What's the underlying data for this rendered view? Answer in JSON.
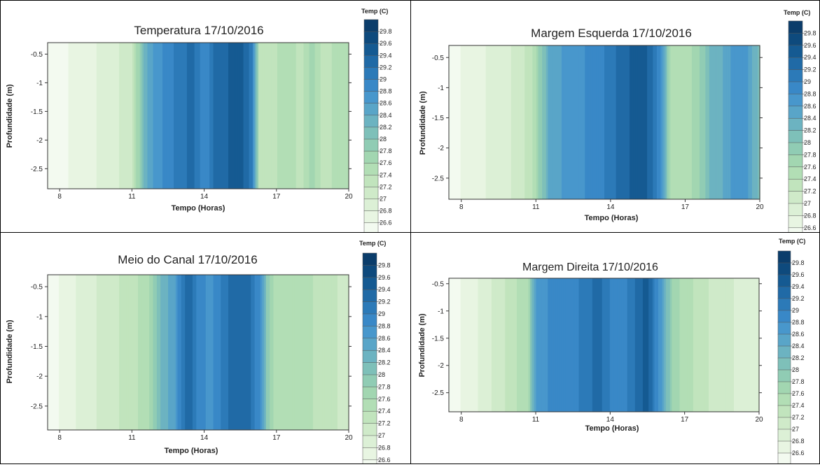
{
  "palette": [
    "#f3faf0",
    "#e8f5e2",
    "#dcf0d6",
    "#cfeac9",
    "#c1e4bd",
    "#b2deb5",
    "#a2d6b1",
    "#90ccb4",
    "#7ec0b9",
    "#6cb3c1",
    "#59a5c8",
    "#4897cc",
    "#3988c7",
    "#2c7ab8",
    "#206aa6",
    "#155a92",
    "#0e4a7d",
    "#0b3d6b"
  ],
  "legend": {
    "title": "Temp (C)",
    "levels": [
      "29.8",
      "29.6",
      "29.4",
      "29.2",
      "29",
      "28.8",
      "28.6",
      "28.4",
      "28.2",
      "28",
      "27.8",
      "27.6",
      "27.4",
      "27.2",
      "27",
      "26.8",
      "26.6"
    ]
  },
  "chart_data": [
    {
      "type": "heatmap",
      "title": "Temperatura 17/10/2016",
      "xlabel": "Tempo (Horas)",
      "ylabel": "Profundidade (m)",
      "xlim": [
        7.5,
        20
      ],
      "ylim": [
        -2.85,
        -0.3
      ],
      "xticks": [
        "8",
        "11",
        "14",
        "17",
        "20"
      ],
      "yticks": [
        "-0.5",
        "-1",
        "-1.5",
        "-2",
        "-2.5"
      ],
      "x": [
        7.5,
        8,
        9,
        10,
        11,
        11.5,
        12,
        12.5,
        13,
        13.5,
        14,
        14.5,
        15,
        15.5,
        16,
        16.3,
        17,
        17.5,
        18,
        18.5,
        19,
        19.5,
        20
      ],
      "profile": [
        26.7,
        26.75,
        26.9,
        27.1,
        27.3,
        28.5,
        28.9,
        29.1,
        29.3,
        29.5,
        29.0,
        29.5,
        29.6,
        29.7,
        29.3,
        27.5,
        27.6,
        27.8,
        27.5,
        27.9,
        27.4,
        27.7,
        27.6
      ]
    },
    {
      "type": "heatmap",
      "title": "Margem Esquerda 17/10/2016",
      "xlabel": "Tempo (Horas)",
      "ylabel": "Profundidade (m)",
      "xlim": [
        7.5,
        20
      ],
      "ylim": [
        -2.85,
        -0.3
      ],
      "xticks": [
        "8",
        "11",
        "14",
        "17",
        "20"
      ],
      "yticks": [
        "-0.5",
        "-1",
        "-1.5",
        "-2",
        "-2.5"
      ],
      "x": [
        7.5,
        8,
        9,
        10,
        10.8,
        11.5,
        12,
        12.5,
        13,
        13.5,
        14,
        14.5,
        15,
        15.5,
        16,
        16.5,
        17,
        17.5,
        18,
        18.5,
        19,
        19.5,
        20
      ],
      "profile": [
        26.7,
        26.8,
        27.0,
        27.2,
        27.5,
        28.6,
        28.8,
        28.9,
        29.0,
        29.1,
        29.3,
        29.5,
        29.7,
        29.6,
        29.0,
        27.6,
        27.7,
        27.9,
        28.4,
        28.6,
        28.9,
        28.8,
        28.3
      ]
    },
    {
      "type": "heatmap",
      "title": "Meio do Canal 17/10/2016",
      "xlabel": "Tempo (Horas)",
      "ylabel": "Profundidade (m)",
      "xlim": [
        7.5,
        20
      ],
      "ylim": [
        -2.9,
        -0.3
      ],
      "xticks": [
        "8",
        "11",
        "14",
        "17",
        "20"
      ],
      "yticks": [
        "-0.5",
        "-1",
        "-1.5",
        "-2",
        "-2.5"
      ],
      "x": [
        7.5,
        8,
        9,
        10,
        11,
        11.7,
        12.2,
        12.8,
        13.3,
        13.7,
        14.2,
        14.8,
        15.3,
        15.8,
        16.3,
        16.6,
        17,
        18,
        19,
        20
      ],
      "profile": [
        26.7,
        26.8,
        27.1,
        27.3,
        27.5,
        27.8,
        28.4,
        28.8,
        29.6,
        29.2,
        28.9,
        29.3,
        29.6,
        29.5,
        29.0,
        28.2,
        27.6,
        27.7,
        27.5,
        27.3
      ]
    },
    {
      "type": "heatmap",
      "title": "Margem Direita 17/10/2016",
      "xlabel": "Tempo (Horas)",
      "ylabel": "Profundidade (m)",
      "xlim": [
        7.5,
        20
      ],
      "ylim": [
        -2.85,
        -0.4
      ],
      "xticks": [
        "8",
        "11",
        "14",
        "17",
        "20"
      ],
      "yticks": [
        "-0.5",
        "-1",
        "-1.5",
        "-2",
        "-2.5"
      ],
      "x": [
        7.5,
        8,
        9,
        10,
        10.7,
        11,
        11.5,
        12,
        12.5,
        13,
        13.5,
        14,
        14.5,
        15,
        15.5,
        16,
        16.5,
        17,
        18,
        19,
        20
      ],
      "profile": [
        26.7,
        26.8,
        27.1,
        27.5,
        27.8,
        28.8,
        29.0,
        29.1,
        29.1,
        29.3,
        29.5,
        29.2,
        29.1,
        29.4,
        29.7,
        28.9,
        28.0,
        27.7,
        27.4,
        27.2,
        27.0
      ]
    }
  ]
}
